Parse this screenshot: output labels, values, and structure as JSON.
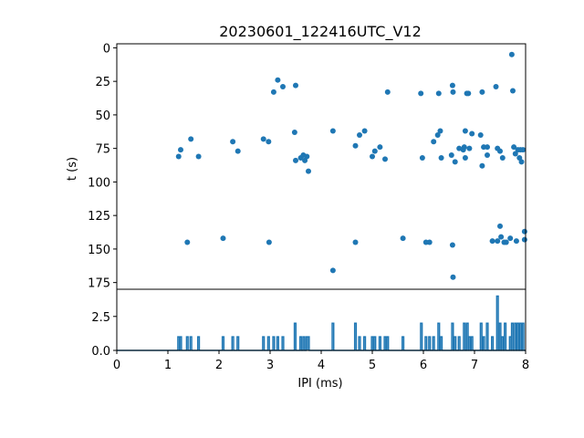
{
  "chart_data": [
    {
      "type": "scatter",
      "title": "20230601_122416UTC_V12",
      "xlabel": "",
      "ylabel": "t (s)",
      "xlim": [
        0,
        8
      ],
      "ylim": [
        180,
        -3
      ],
      "y_inverted": true,
      "grid": false,
      "color": "#1f77b4",
      "yticks": [
        "0",
        "25",
        "50",
        "75",
        "100",
        "125",
        "150",
        "175"
      ],
      "points": [
        {
          "x": 1.21,
          "y": 81
        },
        {
          "x": 1.25,
          "y": 76
        },
        {
          "x": 1.45,
          "y": 68
        },
        {
          "x": 1.6,
          "y": 81
        },
        {
          "x": 1.38,
          "y": 145
        },
        {
          "x": 2.08,
          "y": 142
        },
        {
          "x": 2.27,
          "y": 70
        },
        {
          "x": 2.37,
          "y": 77
        },
        {
          "x": 2.87,
          "y": 68
        },
        {
          "x": 2.97,
          "y": 70
        },
        {
          "x": 2.98,
          "y": 145
        },
        {
          "x": 3.07,
          "y": 33
        },
        {
          "x": 3.15,
          "y": 24
        },
        {
          "x": 3.25,
          "y": 29
        },
        {
          "x": 3.5,
          "y": 28
        },
        {
          "x": 3.48,
          "y": 63
        },
        {
          "x": 3.5,
          "y": 84
        },
        {
          "x": 3.6,
          "y": 82
        },
        {
          "x": 3.65,
          "y": 80
        },
        {
          "x": 3.72,
          "y": 81
        },
        {
          "x": 3.75,
          "y": 92
        },
        {
          "x": 3.68,
          "y": 84
        },
        {
          "x": 4.23,
          "y": 62
        },
        {
          "x": 4.23,
          "y": 166
        },
        {
          "x": 4.67,
          "y": 73
        },
        {
          "x": 4.67,
          "y": 145
        },
        {
          "x": 4.75,
          "y": 65
        },
        {
          "x": 4.85,
          "y": 62
        },
        {
          "x": 5.0,
          "y": 81
        },
        {
          "x": 5.05,
          "y": 77
        },
        {
          "x": 5.15,
          "y": 74
        },
        {
          "x": 5.25,
          "y": 83
        },
        {
          "x": 5.3,
          "y": 33
        },
        {
          "x": 5.6,
          "y": 142
        },
        {
          "x": 5.95,
          "y": 34
        },
        {
          "x": 5.98,
          "y": 82
        },
        {
          "x": 6.05,
          "y": 145
        },
        {
          "x": 6.12,
          "y": 145
        },
        {
          "x": 6.2,
          "y": 70
        },
        {
          "x": 6.28,
          "y": 65
        },
        {
          "x": 6.3,
          "y": 34
        },
        {
          "x": 6.33,
          "y": 62
        },
        {
          "x": 6.35,
          "y": 82
        },
        {
          "x": 6.55,
          "y": 80
        },
        {
          "x": 6.57,
          "y": 28
        },
        {
          "x": 6.58,
          "y": 33
        },
        {
          "x": 6.57,
          "y": 147
        },
        {
          "x": 6.58,
          "y": 171
        },
        {
          "x": 6.62,
          "y": 85
        },
        {
          "x": 6.7,
          "y": 75
        },
        {
          "x": 6.78,
          "y": 76
        },
        {
          "x": 6.8,
          "y": 74
        },
        {
          "x": 6.82,
          "y": 62
        },
        {
          "x": 6.82,
          "y": 82
        },
        {
          "x": 6.85,
          "y": 34
        },
        {
          "x": 6.88,
          "y": 34
        },
        {
          "x": 6.9,
          "y": 75
        },
        {
          "x": 6.95,
          "y": 64
        },
        {
          "x": 7.12,
          "y": 65
        },
        {
          "x": 7.15,
          "y": 88
        },
        {
          "x": 7.15,
          "y": 33
        },
        {
          "x": 7.18,
          "y": 74
        },
        {
          "x": 7.25,
          "y": 74
        },
        {
          "x": 7.25,
          "y": 80
        },
        {
          "x": 7.35,
          "y": 144
        },
        {
          "x": 7.42,
          "y": 29
        },
        {
          "x": 7.45,
          "y": 75
        },
        {
          "x": 7.45,
          "y": 144
        },
        {
          "x": 7.5,
          "y": 77
        },
        {
          "x": 7.5,
          "y": 133
        },
        {
          "x": 7.52,
          "y": 141
        },
        {
          "x": 7.55,
          "y": 82
        },
        {
          "x": 7.58,
          "y": 145
        },
        {
          "x": 7.62,
          "y": 145
        },
        {
          "x": 7.7,
          "y": 142
        },
        {
          "x": 7.73,
          "y": 5
        },
        {
          "x": 7.75,
          "y": 32
        },
        {
          "x": 7.77,
          "y": 74
        },
        {
          "x": 7.8,
          "y": 79
        },
        {
          "x": 7.82,
          "y": 144
        },
        {
          "x": 7.85,
          "y": 76
        },
        {
          "x": 7.88,
          "y": 82
        },
        {
          "x": 7.9,
          "y": 76
        },
        {
          "x": 7.92,
          "y": 85
        },
        {
          "x": 7.95,
          "y": 76
        },
        {
          "x": 7.98,
          "y": 137
        },
        {
          "x": 7.98,
          "y": 143
        }
      ]
    },
    {
      "type": "line",
      "xlabel": "IPI (ms)",
      "ylabel": "",
      "xlim": [
        0,
        8
      ],
      "ylim": [
        0,
        4.5
      ],
      "grid": false,
      "color": "#1f77b4",
      "xticks": [
        "0",
        "1",
        "2",
        "3",
        "4",
        "5",
        "6",
        "7",
        "8"
      ],
      "yticks": [
        "0.0",
        "2.5"
      ],
      "spikes": [
        {
          "x": 1.21,
          "y": 1
        },
        {
          "x": 1.25,
          "y": 1
        },
        {
          "x": 1.38,
          "y": 1
        },
        {
          "x": 1.45,
          "y": 1
        },
        {
          "x": 1.6,
          "y": 1
        },
        {
          "x": 2.08,
          "y": 1
        },
        {
          "x": 2.27,
          "y": 1
        },
        {
          "x": 2.37,
          "y": 1
        },
        {
          "x": 2.87,
          "y": 1
        },
        {
          "x": 2.97,
          "y": 1
        },
        {
          "x": 3.07,
          "y": 1
        },
        {
          "x": 3.15,
          "y": 1
        },
        {
          "x": 3.25,
          "y": 1
        },
        {
          "x": 3.49,
          "y": 2
        },
        {
          "x": 3.6,
          "y": 1
        },
        {
          "x": 3.66,
          "y": 1
        },
        {
          "x": 3.72,
          "y": 1
        },
        {
          "x": 3.75,
          "y": 1
        },
        {
          "x": 4.23,
          "y": 2
        },
        {
          "x": 4.67,
          "y": 2
        },
        {
          "x": 4.75,
          "y": 1
        },
        {
          "x": 4.85,
          "y": 1
        },
        {
          "x": 5.0,
          "y": 1
        },
        {
          "x": 5.05,
          "y": 1
        },
        {
          "x": 5.15,
          "y": 1
        },
        {
          "x": 5.25,
          "y": 1
        },
        {
          "x": 5.3,
          "y": 1
        },
        {
          "x": 5.6,
          "y": 1
        },
        {
          "x": 5.96,
          "y": 2
        },
        {
          "x": 6.05,
          "y": 1
        },
        {
          "x": 6.12,
          "y": 1
        },
        {
          "x": 6.2,
          "y": 1
        },
        {
          "x": 6.3,
          "y": 2
        },
        {
          "x": 6.35,
          "y": 1
        },
        {
          "x": 6.57,
          "y": 2
        },
        {
          "x": 6.62,
          "y": 1
        },
        {
          "x": 6.7,
          "y": 1
        },
        {
          "x": 6.8,
          "y": 2
        },
        {
          "x": 6.86,
          "y": 2
        },
        {
          "x": 6.9,
          "y": 1
        },
        {
          "x": 6.95,
          "y": 1
        },
        {
          "x": 7.13,
          "y": 2
        },
        {
          "x": 7.18,
          "y": 1
        },
        {
          "x": 7.25,
          "y": 2
        },
        {
          "x": 7.35,
          "y": 1
        },
        {
          "x": 7.45,
          "y": 4
        },
        {
          "x": 7.5,
          "y": 2
        },
        {
          "x": 7.55,
          "y": 1
        },
        {
          "x": 7.6,
          "y": 2
        },
        {
          "x": 7.7,
          "y": 1
        },
        {
          "x": 7.74,
          "y": 2
        },
        {
          "x": 7.8,
          "y": 2
        },
        {
          "x": 7.85,
          "y": 2
        },
        {
          "x": 7.9,
          "y": 2
        },
        {
          "x": 7.95,
          "y": 2
        }
      ]
    }
  ]
}
